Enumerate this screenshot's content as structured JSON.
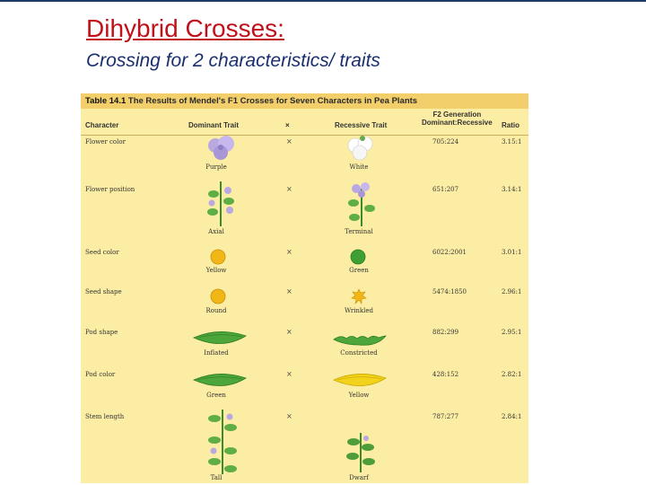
{
  "slide": {
    "title": "Dihybrid Crosses:",
    "subtitle": "Crossing for 2 characteristics/ traits"
  },
  "table": {
    "title_label": "Table 14.1",
    "title_text": "The Results of Mendel's F1 Crosses for Seven Characters in Pea Plants",
    "headers": {
      "character": "Character",
      "dominant": "Dominant Trait",
      "cross": "×",
      "recessive": "Recessive Trait",
      "generation_line1": "F2 Generation",
      "generation_line2": "Dominant:Recessive",
      "ratio": "Ratio"
    },
    "rows": [
      {
        "character": "Flower color",
        "dominant": "Purple",
        "cross": "×",
        "recessive": "White",
        "counts": "705:224",
        "ratio": "3.15:1"
      },
      {
        "character": "Flower position",
        "dominant": "Axial",
        "cross": "×",
        "recessive": "Terminal",
        "counts": "651:207",
        "ratio": "3.14:1"
      },
      {
        "character": "Seed color",
        "dominant": "Yellow",
        "cross": "×",
        "recessive": "Green",
        "counts": "6022:2001",
        "ratio": "3.01:1"
      },
      {
        "character": "Seed shape",
        "dominant": "Round",
        "cross": "×",
        "recessive": "Wrinkled",
        "counts": "5474:1850",
        "ratio": "2.96:1"
      },
      {
        "character": "Pod shape",
        "dominant": "Inflated",
        "cross": "×",
        "recessive": "Constricted",
        "counts": "882:299",
        "ratio": "2.95:1"
      },
      {
        "character": "Pod color",
        "dominant": "Green",
        "cross": "×",
        "recessive": "Yellow",
        "counts": "428:152",
        "ratio": "2.82:1"
      },
      {
        "character": "Stem length",
        "dominant": "Tall",
        "cross": "×",
        "recessive": "Dwarf",
        "counts": "787:277",
        "ratio": "2.84:1"
      }
    ]
  },
  "colors": {
    "title": "#c0101a",
    "subtitle": "#1a2f6e",
    "table_background": "#fbeda3",
    "table_header_bar": "#f2cf6a"
  }
}
